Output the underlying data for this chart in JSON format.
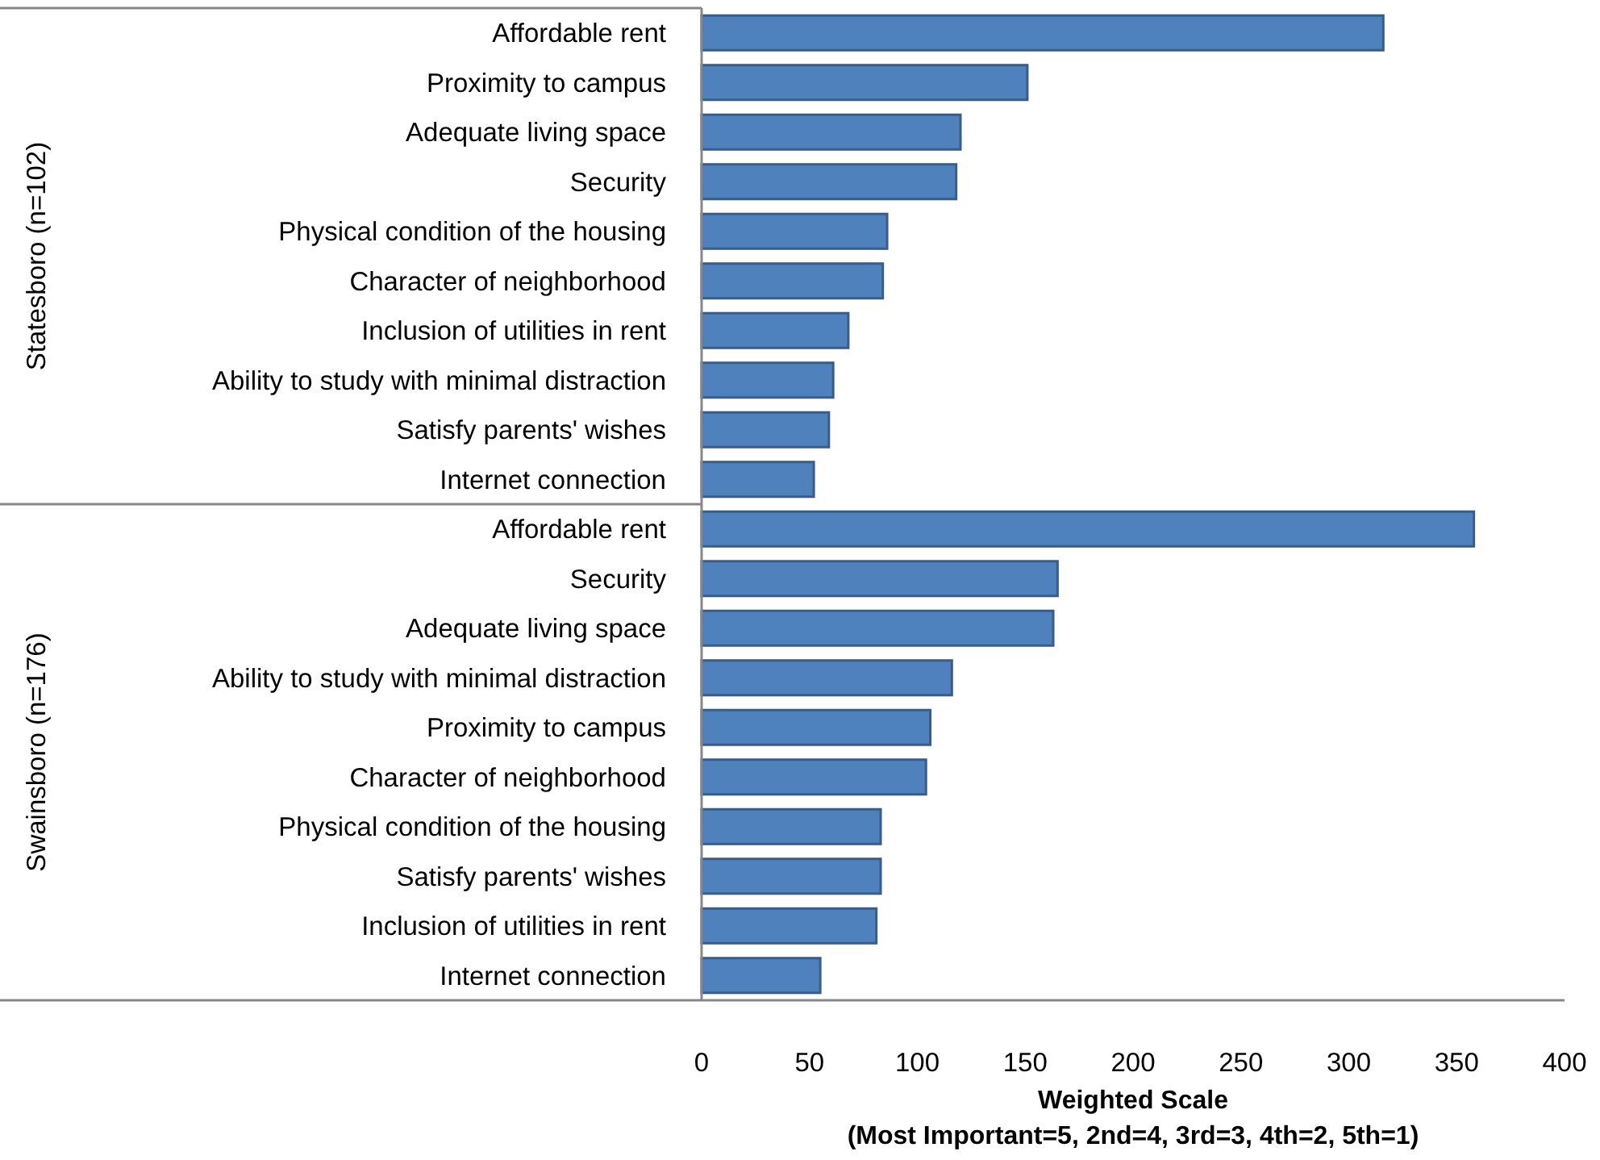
{
  "chart_data": [
    {
      "type": "bar",
      "orientation": "horizontal",
      "ylabel": "Statesboro (n=102)",
      "categories": [
        "Affordable rent",
        "Proximity to campus",
        "Adequate living space",
        "Security",
        "Physical condition of the housing",
        "Character of neighborhood",
        "Inclusion of utilities in rent",
        "Ability to study with minimal distraction",
        "Satisfy parents' wishes",
        "Internet connection"
      ],
      "values": [
        316,
        151,
        120,
        118,
        86,
        84,
        68,
        61,
        59,
        52
      ],
      "color": "#4f81bd",
      "xlim": [
        0,
        400
      ],
      "tick_labels": "y",
      "grid": false
    },
    {
      "type": "bar",
      "orientation": "horizontal",
      "ylabel": "Swainsboro (n=176)",
      "xlabel": "Weighted Scale\n(Most Important=5, 2nd=4, 3rd=3, 4th=2, 5th=1)",
      "categories": [
        "Affordable rent",
        "Security",
        "Adequate living space",
        "Ability to study with minimal distraction",
        "Proximity to campus",
        "Character of neighborhood",
        "Physical condition of the housing",
        "Satisfy parents' wishes",
        "Inclusion of utilities in rent",
        "Internet connection"
      ],
      "values": [
        358,
        165,
        163,
        116,
        106,
        104,
        83,
        83,
        81,
        55
      ],
      "color": "#4f81bd",
      "xlim": [
        0,
        400
      ],
      "xticks": [
        0,
        50,
        100,
        150,
        200,
        250,
        300,
        350,
        400
      ],
      "grid": false
    }
  ]
}
